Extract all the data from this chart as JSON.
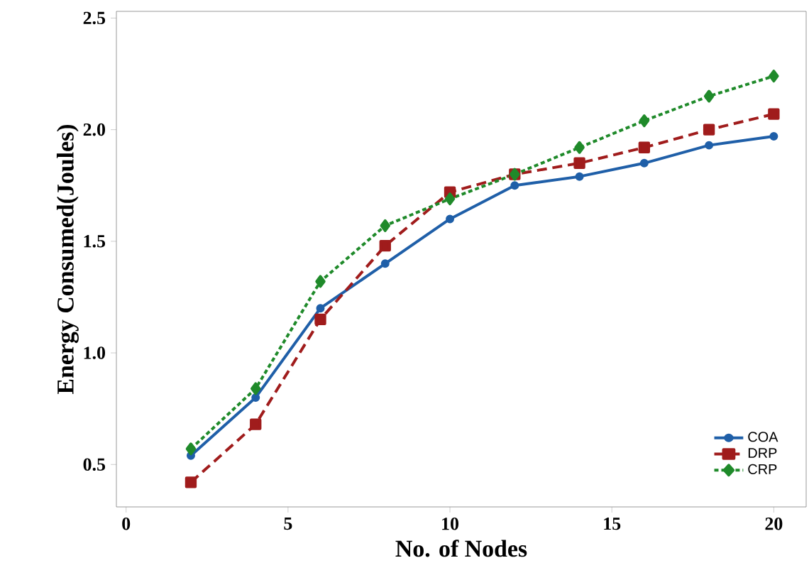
{
  "chart_data": {
    "type": "line",
    "xlabel": "No. of Nodes",
    "ylabel": "Energy Consumed(Joules)",
    "x": [
      2,
      4,
      6,
      8,
      10,
      12,
      14,
      16,
      18,
      20
    ],
    "series": [
      {
        "name": "COA",
        "color": "#1f5fa8",
        "marker": "circle",
        "line_style": "solid",
        "values": [
          0.54,
          0.8,
          1.2,
          1.4,
          1.6,
          1.75,
          1.79,
          1.85,
          1.93,
          1.97
        ]
      },
      {
        "name": "DRP",
        "color": "#a01c1c",
        "marker": "square",
        "line_style": "dashed",
        "values": [
          0.42,
          0.68,
          1.15,
          1.48,
          1.72,
          1.8,
          1.85,
          1.92,
          2.0,
          2.07
        ]
      },
      {
        "name": "CRP",
        "color": "#1f8a2a",
        "marker": "diamond",
        "line_style": "dotted",
        "values": [
          0.57,
          0.84,
          1.32,
          1.57,
          1.69,
          1.8,
          1.92,
          2.04,
          2.15,
          2.24
        ]
      }
    ],
    "xlim": [
      -0.3,
      21
    ],
    "ylim": [
      0.31,
      2.53
    ],
    "xticks": [
      0,
      5,
      10,
      15,
      20
    ],
    "yticks": [
      {
        "value": 0.5,
        "label": "0.5"
      },
      {
        "value": 1.0,
        "label": "1.0"
      },
      {
        "value": 1.5,
        "label": "1.5"
      },
      {
        "value": 2.0,
        "label": "2.0"
      },
      {
        "value": 2.5,
        "label": "2.5"
      }
    ],
    "grid": false,
    "legend": "bottom right"
  }
}
